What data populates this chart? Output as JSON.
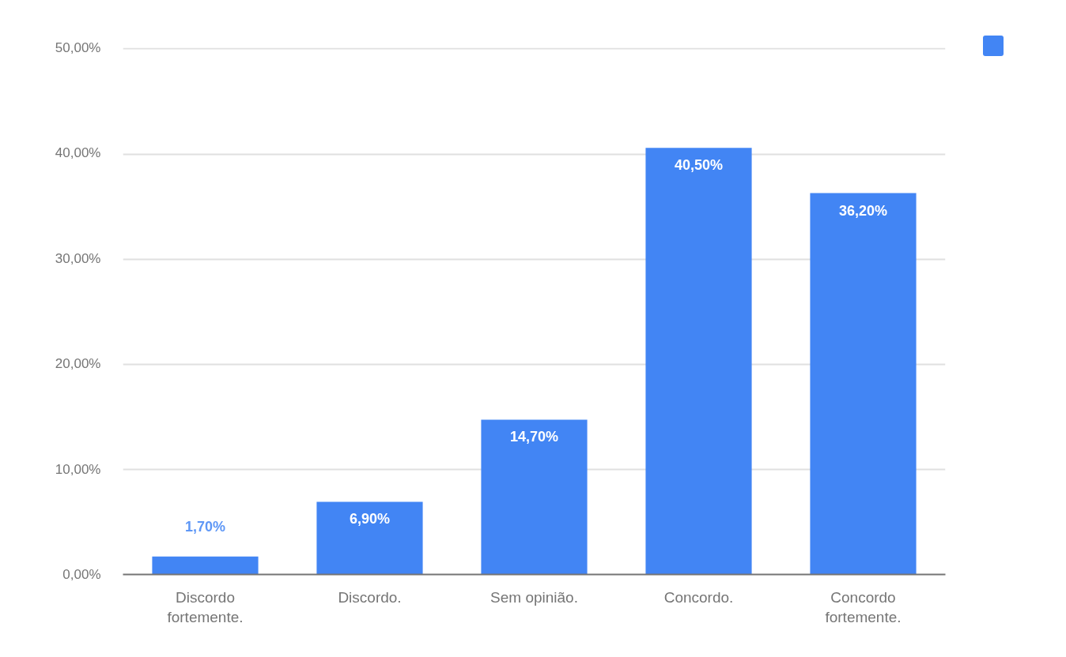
{
  "chart_data": {
    "type": "bar",
    "categories": [
      "Discordo\nfortemente.",
      "Discordo.",
      "Sem opinião.",
      "Concordo.",
      "Concordo\nfortemente."
    ],
    "values": [
      1.7,
      6.9,
      14.7,
      40.5,
      36.2
    ],
    "color": "#4285f4",
    "value_labels": [
      "1,70%",
      "6,90%",
      "14,70%",
      "40,50%",
      "36,20%"
    ],
    "ylim": [
      0,
      50
    ],
    "yticks": [
      {
        "value": 0,
        "label": "0,00%"
      },
      {
        "value": 10,
        "label": "10,00%"
      },
      {
        "value": 20,
        "label": "20,00%"
      },
      {
        "value": 30,
        "label": "30,00%"
      },
      {
        "value": 40,
        "label": "40,00%"
      },
      {
        "value": 50,
        "label": "50,00%"
      }
    ],
    "grid": "y"
  }
}
